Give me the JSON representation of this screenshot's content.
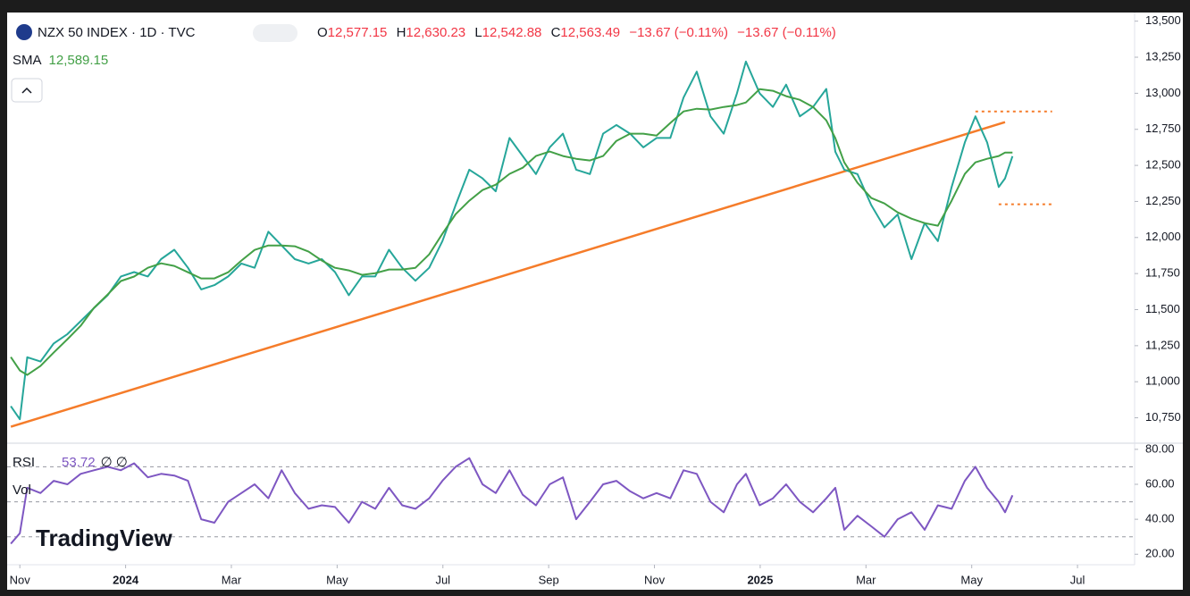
{
  "header": {
    "title": "NZX 50 INDEX · 1D · TVC",
    "ohlc": [
      {
        "key": "O",
        "value": "12,577.15"
      },
      {
        "key": "H",
        "value": "12,630.23"
      },
      {
        "key": "L",
        "value": "12,542.88"
      },
      {
        "key": "C",
        "value": "12,563.49"
      }
    ],
    "change": "−13.67 (−0.11%)",
    "change2": "−13.67 (−0.11%)",
    "sma_label": "SMA",
    "sma_value": "12,589.15",
    "rsi_label": "RSI",
    "rsi_value": "53.72",
    "rsi_extra": "∅ ∅",
    "vol_label": "Vol",
    "watermark": "TradingView"
  },
  "chart_data": [
    {
      "type": "line",
      "xlim": [
        -0.24,
        21.08
      ],
      "ylim": [
        10580,
        13560
      ],
      "yticks": [
        {
          "value": 10750,
          "label": "10,750"
        },
        {
          "value": 11000,
          "label": "11,000"
        },
        {
          "value": 11250,
          "label": "11,250"
        },
        {
          "value": 11500,
          "label": "11,500"
        },
        {
          "value": 11750,
          "label": "11,750"
        },
        {
          "value": 12000,
          "label": "12,000"
        },
        {
          "value": 12250,
          "label": "12,250"
        },
        {
          "value": 12500,
          "label": "12,500"
        },
        {
          "value": 12750,
          "label": "12,750"
        },
        {
          "value": 13000,
          "label": "13,000"
        },
        {
          "value": 13250,
          "label": "13,250"
        },
        {
          "value": 13500,
          "label": "13,500"
        }
      ],
      "x": [
        -0.17,
        0,
        0.14,
        0.39,
        0.64,
        0.9,
        1.15,
        1.4,
        1.66,
        1.91,
        2.16,
        2.42,
        2.67,
        2.92,
        3.18,
        3.43,
        3.68,
        3.94,
        4.19,
        4.44,
        4.7,
        4.95,
        5.2,
        5.46,
        5.71,
        5.96,
        6.22,
        6.47,
        6.72,
        6.98,
        7.23,
        7.48,
        7.74,
        7.99,
        8.24,
        8.5,
        8.75,
        9,
        9.26,
        9.51,
        9.76,
        10.02,
        10.27,
        10.52,
        10.78,
        11.03,
        11.28,
        11.54,
        11.79,
        12.04,
        12.3,
        12.55,
        12.8,
        13.06,
        13.31,
        13.56,
        13.73,
        13.99,
        14.24,
        14.49,
        14.75,
        15,
        15.25,
        15.42,
        15.59,
        15.84,
        16.1,
        16.35,
        16.6,
        16.86,
        17.11,
        17.36,
        17.62,
        17.87,
        18.07,
        18.29,
        18.51,
        18.63,
        18.77
      ],
      "series": [
        {
          "color": "#26a69a",
          "values": [
            10830,
            10740,
            11170,
            11140,
            11265,
            11330,
            11420,
            11510,
            11600,
            11730,
            11760,
            11730,
            11850,
            11915,
            11790,
            11640,
            11670,
            11730,
            11820,
            11790,
            12040,
            11945,
            11850,
            11820,
            11850,
            11760,
            11600,
            11730,
            11730,
            11915,
            11790,
            11700,
            11790,
            11975,
            12225,
            12470,
            12410,
            12320,
            12690,
            12565,
            12440,
            12625,
            12720,
            12470,
            12440,
            12720,
            12780,
            12720,
            12625,
            12690,
            12690,
            12970,
            13150,
            12840,
            12720,
            13000,
            13220,
            13000,
            12905,
            13060,
            12840,
            12905,
            13030,
            12595,
            12470,
            12440,
            12225,
            12070,
            12160,
            11850,
            12100,
            11975,
            12350,
            12660,
            12840,
            12660,
            12350,
            12410,
            12563.49
          ]
        },
        {
          "color": "#43a047",
          "values": [
            11171,
            11078,
            11047,
            11109,
            11202,
            11295,
            11388,
            11512,
            11605,
            11698,
            11729,
            11790,
            11821,
            11803,
            11759,
            11716,
            11716,
            11759,
            11840,
            11914,
            11945,
            11945,
            11939,
            11902,
            11840,
            11790,
            11772,
            11741,
            11753,
            11778,
            11778,
            11790,
            11883,
            12026,
            12162,
            12255,
            12329,
            12366,
            12441,
            12484,
            12565,
            12596,
            12565,
            12546,
            12534,
            12565,
            12670,
            12720,
            12720,
            12707,
            12794,
            12874,
            12893,
            12887,
            12905,
            12918,
            12936,
            13029,
            13017,
            12980,
            12955,
            12905,
            12812,
            12689,
            12521,
            12379,
            12274,
            12236,
            12174,
            12131,
            12100,
            12082,
            12255,
            12441,
            12521,
            12546,
            12565,
            12589.15,
            12589.15
          ]
        }
      ],
      "trendline": {
        "color": "#f57c2a",
        "x": [
          -0.17,
          18.63
        ],
        "y": [
          10688,
          12800
        ]
      },
      "levels": [
        {
          "color": "#f57c2a",
          "x": [
            18.07,
            19.52
          ],
          "y": 12874
        },
        {
          "color": "#f57c2a",
          "x": [
            18.51,
            19.52
          ],
          "y": 12230
        }
      ]
    },
    {
      "type": "line",
      "xlim": [
        -0.24,
        21.08
      ],
      "ylim": [
        14,
        83
      ],
      "yticks": [
        {
          "value": 20,
          "label": "20.00"
        },
        {
          "value": 40,
          "label": "40.00"
        },
        {
          "value": 60,
          "label": "60.00"
        },
        {
          "value": 80,
          "label": "80.00"
        }
      ],
      "guides": [
        30,
        50,
        70
      ],
      "xticks": [
        {
          "value": 0,
          "label": "Nov"
        },
        {
          "value": 2,
          "label": "2024"
        },
        {
          "value": 4,
          "label": "Mar"
        },
        {
          "value": 6,
          "label": "May"
        },
        {
          "value": 8,
          "label": "Jul"
        },
        {
          "value": 10,
          "label": "Sep"
        },
        {
          "value": 12,
          "label": "Nov"
        },
        {
          "value": 14,
          "label": "2025"
        },
        {
          "value": 16,
          "label": "Mar"
        },
        {
          "value": 18,
          "label": "May"
        },
        {
          "value": 20,
          "label": "Jul"
        }
      ],
      "x": [
        -0.17,
        0,
        0.14,
        0.39,
        0.64,
        0.9,
        1.15,
        1.4,
        1.66,
        1.91,
        2.16,
        2.42,
        2.67,
        2.92,
        3.18,
        3.43,
        3.68,
        3.94,
        4.19,
        4.44,
        4.7,
        4.95,
        5.2,
        5.46,
        5.71,
        5.96,
        6.22,
        6.47,
        6.72,
        6.98,
        7.23,
        7.48,
        7.74,
        7.99,
        8.24,
        8.5,
        8.75,
        9,
        9.26,
        9.51,
        9.76,
        10.02,
        10.27,
        10.52,
        10.78,
        11.03,
        11.28,
        11.54,
        11.79,
        12.04,
        12.3,
        12.55,
        12.8,
        13.06,
        13.31,
        13.56,
        13.73,
        13.99,
        14.24,
        14.49,
        14.75,
        15,
        15.25,
        15.42,
        15.59,
        15.84,
        16.1,
        16.35,
        16.6,
        16.86,
        17.11,
        17.36,
        17.62,
        17.87,
        18.07,
        18.29,
        18.51,
        18.63,
        18.77
      ],
      "series": [
        {
          "color": "#7e57c2",
          "values": [
            26,
            32,
            58,
            55,
            62,
            60,
            66,
            68,
            70,
            68,
            72,
            64,
            66,
            65,
            62,
            40,
            38,
            50,
            55,
            60,
            52,
            68,
            55,
            46,
            48,
            47,
            38,
            50,
            46,
            58,
            48,
            46,
            52,
            62,
            70,
            75,
            60,
            55,
            68,
            54,
            48,
            60,
            64,
            40,
            50,
            60,
            62,
            56,
            52,
            55,
            52,
            68,
            66,
            50,
            44,
            60,
            66,
            48,
            52,
            60,
            50,
            44,
            52,
            58,
            34,
            42,
            36,
            30,
            40,
            44,
            34,
            48,
            46,
            62,
            70,
            58,
            50,
            44,
            53.72
          ]
        }
      ]
    }
  ]
}
